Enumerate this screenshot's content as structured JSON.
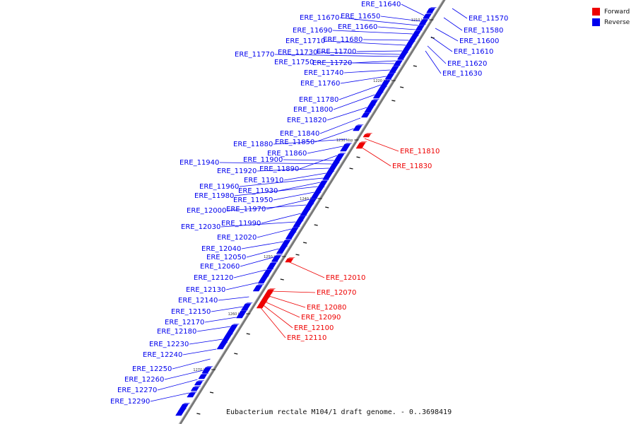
{
  "caption": "Eubacterium rectale M104/1 draft genome. - 0..3698419",
  "legend": [
    {
      "label": "Forward",
      "color": "#ee0000"
    },
    {
      "label": "Reverse",
      "color": "#0000ee"
    }
  ],
  "colors": {
    "forward": "#ee0000",
    "reverse": "#0000ee",
    "axis": "#777777"
  },
  "ticks": [
    "1210 kbp",
    "1220 kbp",
    "1230 kbp",
    "1240 kbp",
    "1250 kbp",
    "1260 kbp",
    "1270 kbp"
  ],
  "right_labels": [
    "ERE_11570",
    "ERE_11580",
    "ERE_11600",
    "ERE_11610",
    "ERE_11620",
    "ERE_11630"
  ],
  "forward_labels": [
    "ERE_11810",
    "ERE_11830",
    "ERE_12010",
    "ERE_12070",
    "ERE_12080",
    "ERE_12090",
    "ERE_12100",
    "ERE_12110"
  ],
  "reverse_labels": [
    "ERE_11640",
    "ERE_11650",
    "ERE_11670",
    "ERE_11660",
    "ERE_11690",
    "ERE_11680",
    "ERE_11710",
    "ERE_11700",
    "ERE_11730",
    "ERE_11770",
    "ERE_11720",
    "ERE_11750",
    "ERE_11740",
    "ERE_11760",
    "ERE_11780",
    "ERE_11800",
    "ERE_11820",
    "ERE_11840",
    "ERE_11850",
    "ERE_11880",
    "ERE_11860",
    "ERE_11890",
    "ERE_11900",
    "ERE_11940",
    "ERE_11920",
    "ERE_11910",
    "ERE_11960",
    "ERE_11930",
    "ERE_11980",
    "ERE_11950",
    "ERE_11970",
    "ERE_12000",
    "ERE_11990",
    "ERE_12030",
    "ERE_12020",
    "ERE_12040",
    "ERE_12050",
    "ERE_12060",
    "ERE_12120",
    "ERE_12130",
    "ERE_12140",
    "ERE_12150",
    "ERE_12170",
    "ERE_12180",
    "ERE_12230",
    "ERE_12240",
    "ERE_12250",
    "ERE_12260",
    "ERE_12270",
    "ERE_12290"
  ]
}
